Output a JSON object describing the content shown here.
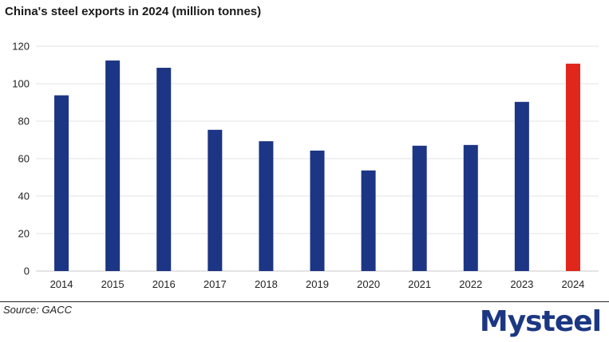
{
  "chart_data": {
    "type": "bar",
    "title": "China's steel exports in 2024 (million tonnes)",
    "categories": [
      "2014",
      "2015",
      "2016",
      "2017",
      "2018",
      "2019",
      "2020",
      "2021",
      "2022",
      "2023",
      "2024"
    ],
    "values": [
      93.8,
      112.4,
      108.5,
      75.4,
      69.3,
      64.3,
      53.7,
      66.9,
      67.3,
      90.3,
      110.7
    ],
    "bar_colors": [
      "#1c3584",
      "#1c3584",
      "#1c3584",
      "#1c3584",
      "#1c3584",
      "#1c3584",
      "#1c3584",
      "#1c3584",
      "#1c3584",
      "#1c3584",
      "#e1261c"
    ],
    "ylim": [
      0,
      120
    ],
    "yticks": [
      0,
      20,
      40,
      60,
      80,
      100,
      120
    ],
    "grid": true,
    "legend": "none"
  },
  "footer": {
    "source": "Source: GACC"
  },
  "logo": {
    "text": "Mysteel",
    "color": "#1c3782"
  }
}
